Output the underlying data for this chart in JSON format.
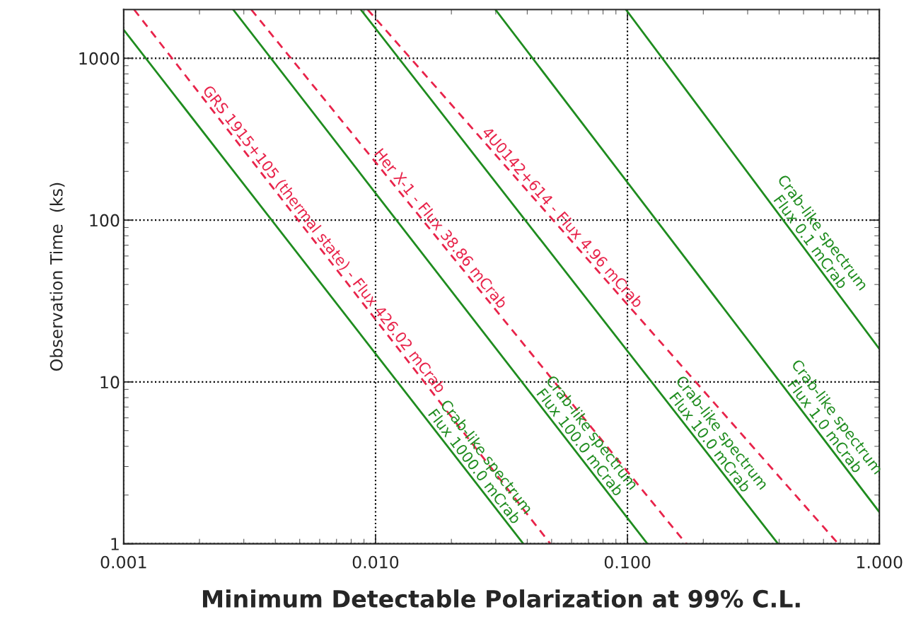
{
  "chart_data": {
    "type": "line",
    "xlabel": "Minimum Detectable Polarization at 99% C.L.",
    "ylabel": "Observation Time  (ks)",
    "log": "xy",
    "xlim": [
      0.001,
      1.0
    ],
    "ylim": [
      1,
      2000
    ],
    "xticks": [
      {
        "value": 0.001,
        "label": "0.001"
      },
      {
        "value": 0.01,
        "label": "0.010"
      },
      {
        "value": 0.1,
        "label": "0.100"
      },
      {
        "value": 1.0,
        "label": "1.000"
      }
    ],
    "yticks": [
      1,
      10,
      100,
      1000
    ],
    "grid": true,
    "marker": "none",
    "series": [
      {
        "color": "#1f8c1f",
        "line_style": "solid",
        "x": [
          0.001,
          0.0386
        ],
        "values": [
          1500,
          1
        ]
      },
      {
        "color": "#1f8c1f",
        "line_style": "solid",
        "x": [
          0.00272,
          0.12
        ],
        "values": [
          2000,
          1
        ]
      },
      {
        "color": "#1f8c1f",
        "line_style": "solid",
        "x": [
          0.00873,
          0.396
        ],
        "values": [
          2000,
          1
        ]
      },
      {
        "color": "#1f8c1f",
        "line_style": "solid",
        "x": [
          0.0299,
          1.0
        ],
        "values": [
          2000,
          1.57
        ]
      },
      {
        "color": "#1f8c1f",
        "line_style": "solid",
        "x": [
          0.0986,
          1.0
        ],
        "values": [
          2000,
          16
        ]
      },
      {
        "color": "#e8234a",
        "line_style": "dashed",
        "x": [
          0.0011,
          0.0494
        ],
        "values": [
          2000,
          1
        ]
      },
      {
        "color": "#e8234a",
        "line_style": "dashed",
        "x": [
          0.00321,
          0.171
        ],
        "values": [
          2000,
          1
        ]
      },
      {
        "color": "#e8234a",
        "line_style": "dashed",
        "x": [
          0.0093,
          0.687
        ],
        "values": [
          2000,
          1
        ]
      }
    ],
    "annotations": [
      "Crab-like spectrum\nFlux 1000.0 mCrab",
      "Crab-like spectrum\nFlux 100.0 mCrab",
      "Crab-like spectrum\nFlux 10.0 mCrab",
      "Crab-like spectrum\nFlux 1.0 mCrab",
      "Crab-like spectrum\nFlux 0.1 mCrab",
      "GRS 1915+105 (thermal state) - Flux 426.02 mCrab",
      "Her X-1 - Flux 38.86 mCrab",
      "4U0142+614 - Flux 4.96 mCrab"
    ]
  }
}
